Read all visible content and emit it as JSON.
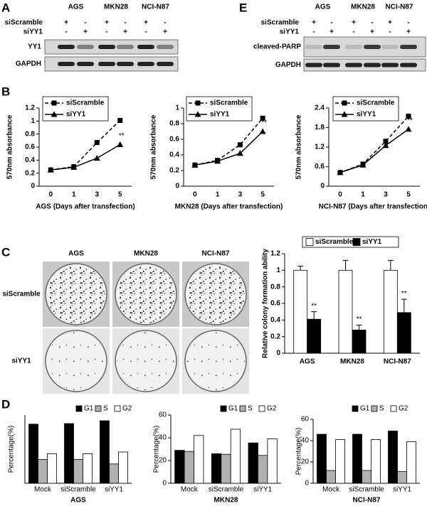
{
  "panel_labels": [
    "A",
    "B",
    "C",
    "D",
    "E"
  ],
  "blot_a": {
    "lanes": [
      "AGS",
      "MKN28",
      "NCI-N87"
    ],
    "rows": [
      {
        "name": "siScramble",
        "marks": [
          "+",
          "-",
          "+",
          "-",
          "+",
          "-"
        ]
      },
      {
        "name": "siYY1",
        "marks": [
          "-",
          "+",
          "-",
          "+",
          "-",
          "+"
        ]
      }
    ],
    "bands": [
      "YY1",
      "GAPDH"
    ]
  },
  "blot_e": {
    "lanes": [
      "AGS",
      "MKN28",
      "NCI-N87"
    ],
    "rows": [
      {
        "name": "siScramble",
        "marks": [
          "+",
          "-",
          "+",
          "-",
          "+",
          "-"
        ]
      },
      {
        "name": "siYY1",
        "marks": [
          "-",
          "+",
          "-",
          "+",
          "-",
          "+"
        ]
      }
    ],
    "bands": [
      "cleaved-PARP",
      "GAPDH"
    ]
  },
  "colony": {
    "columns": [
      "AGS",
      "MKN28",
      "NCI-N87"
    ],
    "rows": [
      "siScramble",
      "siYY1"
    ]
  },
  "chart_data": [
    {
      "type": "line",
      "xlabel": "AGS (Days after transfection)",
      "ylabel": "570nm absorbance",
      "categories": [
        "0",
        "1",
        "3",
        "5"
      ],
      "series": [
        {
          "name": "siScramble",
          "color": "#000000",
          "line_style": "dashed",
          "marker": "square",
          "values": [
            0.25,
            0.3,
            0.67,
            1.01
          ]
        },
        {
          "name": "siYY1",
          "color": "#000000",
          "line_style": "solid",
          "marker": "triangle",
          "values": [
            0.25,
            0.29,
            0.43,
            0.64
          ]
        }
      ],
      "ylim": [
        0,
        1.2
      ],
      "yticks": [
        0,
        0.2,
        0.4,
        0.6,
        0.8,
        1,
        1.2
      ],
      "annotation": "**"
    },
    {
      "type": "line",
      "xlabel": "MKN28 (Days after transfection)",
      "ylabel": "570nm absorbance",
      "categories": [
        "0",
        "1",
        "3",
        "5"
      ],
      "series": [
        {
          "name": "siScramble",
          "color": "#000000",
          "line_style": "dashed",
          "marker": "square",
          "values": [
            0.27,
            0.33,
            0.53,
            0.87
          ]
        },
        {
          "name": "siYY1",
          "color": "#000000",
          "line_style": "solid",
          "marker": "triangle",
          "values": [
            0.27,
            0.32,
            0.42,
            0.7
          ]
        }
      ],
      "ylim": [
        0,
        1
      ],
      "yticks": [
        0,
        0.2,
        0.4,
        0.6,
        0.8,
        1
      ],
      "annotation": "**"
    },
    {
      "type": "line",
      "xlabel": "NCI-N87 (Days after transfection)",
      "ylabel": "570nm absorbance",
      "categories": [
        "0",
        "1",
        "3",
        "5"
      ],
      "series": [
        {
          "name": "siScramble",
          "color": "#000000",
          "line_style": "dashed",
          "marker": "square",
          "values": [
            0.42,
            0.68,
            1.38,
            2.15
          ]
        },
        {
          "name": "siYY1",
          "color": "#000000",
          "line_style": "solid",
          "marker": "triangle",
          "values": [
            0.42,
            0.65,
            1.25,
            1.75
          ]
        }
      ],
      "ylim": [
        0,
        2.4
      ],
      "yticks": [
        0,
        0.6,
        1.2,
        1.8,
        2.4
      ],
      "annotation": "**"
    },
    {
      "type": "bar",
      "ylabel": "Relative colony formation ability",
      "categories": [
        "AGS",
        "MKN28",
        "NCI-N87"
      ],
      "series": [
        {
          "name": "siScramble",
          "color": "#ffffff",
          "values": [
            1,
            1,
            1
          ],
          "errors": [
            0.05,
            0.12,
            0.12
          ]
        },
        {
          "name": "siYY1",
          "color": "#000000",
          "values": [
            0.41,
            0.28,
            0.49
          ],
          "errors": [
            0.09,
            0.06,
            0.16
          ]
        }
      ],
      "ylim": [
        0,
        1.2
      ],
      "yticks": [
        0,
        0.2,
        0.4,
        0.6,
        0.8,
        1,
        1.2
      ],
      "annotation": "**"
    },
    {
      "type": "bar",
      "xlabel": "AGS",
      "ylabel": "Percentage(%)",
      "categories": [
        "Mock",
        "siScramble",
        "siYY1"
      ],
      "series": [
        {
          "name": "G1",
          "color": "#000000",
          "values": [
            52,
            52.5,
            55
          ]
        },
        {
          "name": "S",
          "color": "#b0b0b0",
          "values": [
            21,
            21,
            17
          ]
        },
        {
          "name": "G2",
          "color": "#ffffff",
          "values": [
            26,
            26,
            27.5
          ]
        }
      ],
      "ylim": [
        0,
        60
      ]
    },
    {
      "type": "bar",
      "xlabel": "MKN28",
      "ylabel": "Percentage(%)",
      "categories": [
        "Mock",
        "siScramble",
        "siYY1"
      ],
      "series": [
        {
          "name": "G1",
          "color": "#000000",
          "values": [
            29,
            26,
            35.5
          ]
        },
        {
          "name": "S",
          "color": "#b0b0b0",
          "values": [
            28,
            25.5,
            24.5
          ]
        },
        {
          "name": "G2",
          "color": "#ffffff",
          "values": [
            42,
            47.5,
            39
          ]
        }
      ],
      "ylim": [
        0,
        60
      ],
      "yticks": [
        0,
        20,
        40,
        60
      ]
    },
    {
      "type": "bar",
      "xlabel": "NCI-N87",
      "ylabel": "Percentage(%)",
      "categories": [
        "Mock",
        "siScramble",
        "siYY1"
      ],
      "series": [
        {
          "name": "G1",
          "color": "#000000",
          "values": [
            46,
            46,
            49
          ]
        },
        {
          "name": "S",
          "color": "#b0b0b0",
          "values": [
            12,
            12,
            11
          ]
        },
        {
          "name": "G2",
          "color": "#ffffff",
          "values": [
            41,
            41,
            39
          ]
        }
      ],
      "ylim": [
        0,
        60
      ],
      "yticks": [
        0,
        20,
        40,
        60
      ]
    }
  ]
}
